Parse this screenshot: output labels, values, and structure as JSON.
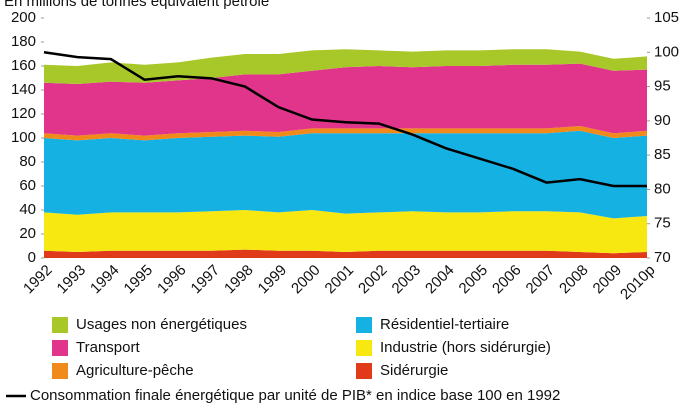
{
  "chart_data": {
    "type": "area",
    "stacked": true,
    "title": "En millions de tonnes équivalent pétrole",
    "categories": [
      "1992",
      "1993",
      "1994",
      "1995",
      "1996",
      "1997",
      "1998",
      "1999",
      "2000",
      "2001",
      "2002",
      "2003",
      "2004",
      "2005",
      "2006",
      "2007",
      "2008",
      "2009",
      "2010p"
    ],
    "ylim": [
      0,
      200
    ],
    "yticks": [
      0,
      20,
      40,
      60,
      80,
      100,
      120,
      140,
      160,
      180,
      200
    ],
    "y2lim": [
      70,
      105
    ],
    "y2ticks": [
      70,
      75,
      80,
      85,
      90,
      95,
      100,
      105
    ],
    "grid": false,
    "legend": "bottom",
    "series": [
      {
        "name": "Sidérurgie",
        "color": "#e03a1a",
        "values": [
          6,
          5,
          6,
          6,
          6,
          6,
          7,
          6,
          6,
          5,
          6,
          6,
          6,
          6,
          6,
          6,
          5,
          4,
          5
        ]
      },
      {
        "name": "Industrie (hors sidérurgie)",
        "color": "#f7e812",
        "values": [
          32,
          31,
          32,
          32,
          32,
          33,
          33,
          32,
          34,
          32,
          32,
          33,
          32,
          32,
          33,
          33,
          33,
          29,
          30
        ]
      },
      {
        "name": "Résidentiel-tertiaire",
        "color": "#16b1e3",
        "values": [
          62,
          62,
          62,
          60,
          62,
          62,
          62,
          63,
          64,
          67,
          66,
          65,
          66,
          66,
          65,
          65,
          68,
          67,
          67
        ]
      },
      {
        "name": "Agriculture-pêche",
        "color": "#f08a1a",
        "values": [
          4,
          4,
          4,
          4,
          4,
          4,
          4,
          4,
          4,
          4,
          4,
          4,
          4,
          4,
          4,
          4,
          4,
          4,
          4
        ]
      },
      {
        "name": "Transport",
        "color": "#e0358a",
        "values": [
          42,
          43,
          43,
          44,
          44,
          45,
          47,
          48,
          48,
          51,
          52,
          51,
          52,
          52,
          53,
          53,
          52,
          52,
          51
        ]
      },
      {
        "name": "Usages non énergétiques",
        "color": "#a8c82a",
        "values": [
          15,
          15,
          16,
          15,
          15,
          17,
          17,
          17,
          17,
          15,
          13,
          13,
          13,
          13,
          13,
          13,
          10,
          10,
          11
        ]
      },
      {
        "name": "Consommation finale énergétique par unité de PIB* en indice base 100 en 1992",
        "type": "line",
        "axis": "y2",
        "color": "#000000",
        "values": [
          100,
          99.3,
          99,
          96,
          96.5,
          96.2,
          95,
          92,
          90.2,
          89.8,
          89.6,
          88,
          86,
          84.5,
          83,
          81,
          81.5,
          80.5,
          80.5
        ]
      }
    ]
  }
}
